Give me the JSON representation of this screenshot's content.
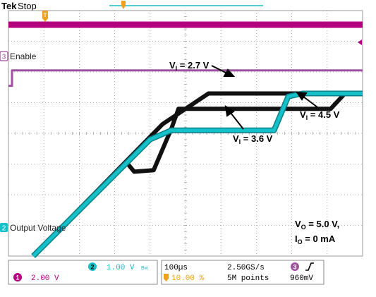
{
  "header": {
    "brand": "Tek",
    "state": "Stop"
  },
  "colors": {
    "ch1": "#b4007f",
    "ch2": "#16c0c8",
    "ch2_edge": "#0b7f86",
    "ch3_marker": "#a050a0",
    "trigger": "#f0a020",
    "trace_black": "#111111",
    "grid": "#9a9a9a"
  },
  "channel_labels": {
    "ch3": {
      "number": "3",
      "name": "Enable"
    },
    "ch2": {
      "number": "2",
      "name": "Output Voltage"
    }
  },
  "annotations": {
    "v27": {
      "main": "V",
      "sub": "I",
      "rest": " = 2.7 V"
    },
    "v45": {
      "main": "V",
      "sub": "I",
      "rest": " = 4.5 V"
    },
    "v36": {
      "main": "V",
      "sub": "I",
      "rest": " = 3.6 V"
    },
    "vo": {
      "main": "V",
      "sub": "O",
      "rest": " = 5.0 V,"
    },
    "io": {
      "main": "I",
      "sub": "O",
      "rest": " = 0 mA"
    }
  },
  "status": {
    "ch2_badge": "2",
    "ch2_scale": "1.00 V",
    "ch2_bw": "Bw",
    "ch1_badge": "1",
    "ch1_scale": "2.00 V",
    "timebase": "100µs",
    "sample_rate": "2.50GS/s",
    "trigger_pos": "10.00 %",
    "record_length": "5M points",
    "trig_source": "3",
    "trig_slope": "rising-edge-icon",
    "trig_level": "960mV"
  },
  "chart_data": {
    "type": "line",
    "title": "",
    "xlabel": "",
    "ylabel": "",
    "xlim": [
      0,
      10
    ],
    "ylim": [
      0,
      8
    ],
    "grid": true,
    "grid_divisions": {
      "x": 10,
      "y": 8
    },
    "series": [
      {
        "name": "",
        "x": [
          0,
          0.1,
          10
        ],
        "y": [
          7.54,
          7.54,
          7.54
        ]
      },
      {
        "name": "",
        "x": [
          0,
          0.1,
          0.1,
          10
        ],
        "y": [
          5.55,
          5.55,
          6.05,
          6.05
        ]
      },
      {
        "name": "",
        "x": [
          0.7,
          4.35,
          5.65,
          10
        ],
        "y": [
          0.0,
          4.3,
          5.3,
          5.3
        ]
      },
      {
        "name": "",
        "x": [
          3.3,
          3.55,
          4.1,
          4.6,
          4.8,
          9.1,
          9.5,
          10
        ],
        "y": [
          3.1,
          2.75,
          2.8,
          4.15,
          4.8,
          4.8,
          5.3,
          5.3
        ]
      },
      {
        "name": "",
        "x": [
          0.7,
          4.0,
          4.6,
          7.5,
          7.9,
          8.3,
          10
        ],
        "y": [
          0.0,
          3.8,
          4.1,
          4.1,
          5.2,
          5.3,
          5.3
        ]
      }
    ]
  }
}
